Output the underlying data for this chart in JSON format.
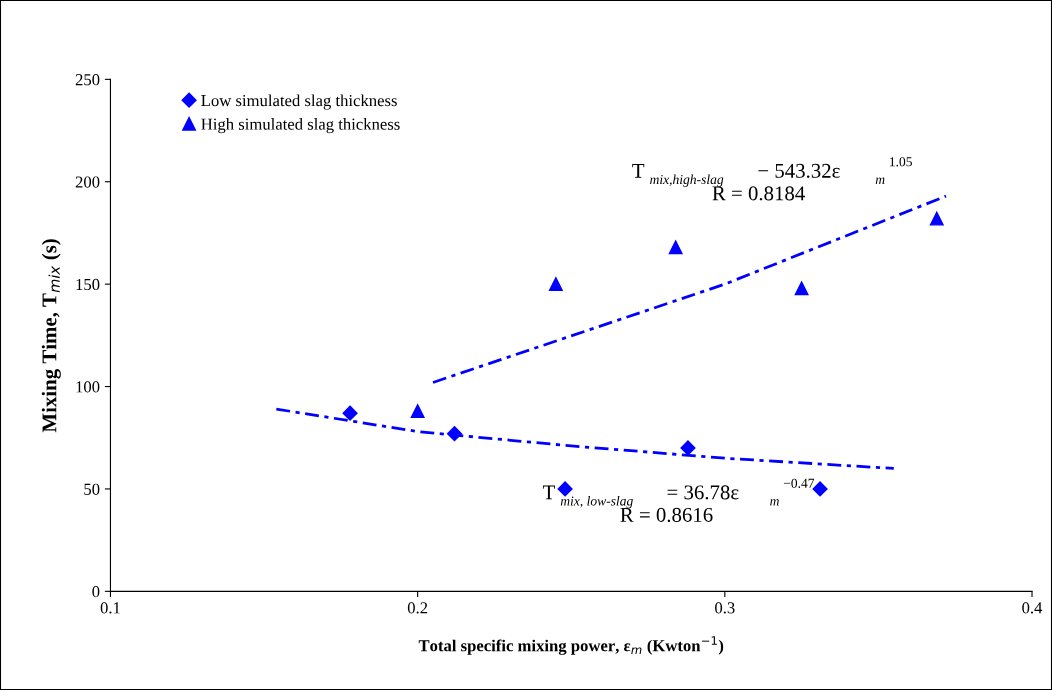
{
  "chart_data": {
    "type": "scatter",
    "xlabel": "Total specific mixing power, ε$_{m}$ (Kwton$^{−1}$)",
    "ylabel": "Mixing Time, T$_{mix}$ (s)",
    "xlim": [
      0.1,
      0.4
    ],
    "xticks": [
      {
        "value": 0.1,
        "label": "0.1"
      },
      {
        "value": 0.2,
        "label": "0.2"
      },
      {
        "value": 0.3,
        "label": "0.3"
      },
      {
        "value": 0.4,
        "label": "0.4"
      }
    ],
    "ylim": [
      0,
      250
    ],
    "yticks": [
      0,
      50,
      100,
      150,
      200,
      250
    ],
    "grid": false,
    "legend": "top left",
    "series": [
      {
        "name": "Low simulated slag thickness",
        "marker": "diamond",
        "color": "#0000ff",
        "x": [
          0.178,
          0.212,
          0.248,
          0.288,
          0.331
        ],
        "values": [
          87,
          77,
          50,
          70,
          50
        ]
      },
      {
        "name": "High simulated slag thickness",
        "marker": "triangle",
        "color": "#0000ff",
        "x": [
          0.2,
          0.245,
          0.284,
          0.325,
          0.369
        ],
        "values": [
          88,
          150,
          168,
          148,
          182
        ]
      },
      {
        "type": "line",
        "marker": "none",
        "line_style": "dashed",
        "color": "#0000ff",
        "x": [
          0.154,
          0.2,
          0.25,
          0.3,
          0.355
        ],
        "values": [
          89,
          78,
          71,
          65,
          60
        ]
      },
      {
        "type": "line",
        "marker": "none",
        "line_style": "dashed",
        "color": "#0000ff",
        "x": [
          0.205,
          0.3,
          0.372
        ],
        "values": [
          102,
          150,
          193
        ]
      }
    ],
    "annotations": [
      "T$_{mix,high-slag}$ − 543.32ε$_{m}$$^{1.05}$",
      "R = 0.8184",
      "T$_{mix, low-slag}$ = 36.78ε$_{m}$$^{−0.47}$",
      "R = 0.8616"
    ]
  }
}
